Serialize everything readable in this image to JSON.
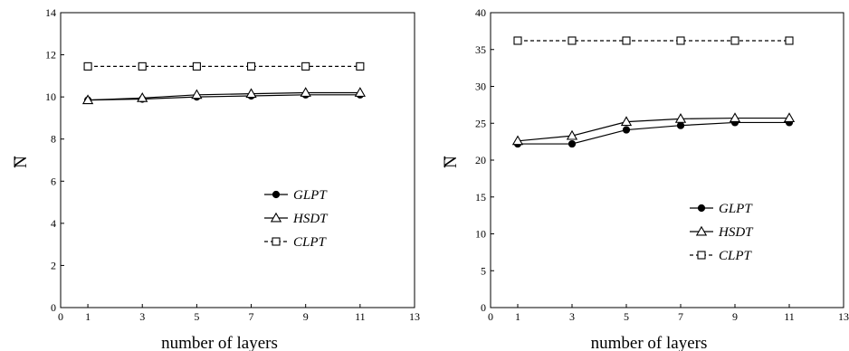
{
  "chart_data": [
    {
      "type": "line",
      "xlabel": "number of layers",
      "ylabel": "N",
      "ylabel_overbar": true,
      "xlim": [
        0,
        13
      ],
      "ylim": [
        0,
        14
      ],
      "xticks": [
        0,
        1,
        3,
        5,
        7,
        9,
        11,
        13
      ],
      "yticks": [
        0,
        2,
        4,
        6,
        8,
        10,
        12,
        14
      ],
      "x": [
        1,
        3,
        5,
        7,
        9,
        11
      ],
      "grid": false,
      "legend_position": "bottom-right",
      "series": [
        {
          "name": "GLPT",
          "marker": "filled-circle",
          "line": "solid",
          "values": [
            9.85,
            9.9,
            10.0,
            10.05,
            10.1,
            10.1
          ]
        },
        {
          "name": "HSDT",
          "marker": "open-triangle",
          "line": "solid",
          "values": [
            9.85,
            9.95,
            10.1,
            10.15,
            10.2,
            10.2
          ]
        },
        {
          "name": "CLPT",
          "marker": "open-square",
          "line": "dashed",
          "values": [
            11.45,
            11.45,
            11.45,
            11.45,
            11.45,
            11.45
          ]
        }
      ]
    },
    {
      "type": "line",
      "xlabel": "number of layers",
      "ylabel": "N",
      "ylabel_overbar": true,
      "xlim": [
        0,
        13
      ],
      "ylim": [
        0,
        40
      ],
      "xticks": [
        0,
        1,
        3,
        5,
        7,
        9,
        11,
        13
      ],
      "yticks": [
        0,
        5,
        10,
        15,
        20,
        25,
        30,
        35,
        40
      ],
      "x": [
        1,
        3,
        5,
        7,
        9,
        11
      ],
      "grid": false,
      "legend_position": "bottom-right",
      "series": [
        {
          "name": "GLPT",
          "marker": "filled-circle",
          "line": "solid",
          "values": [
            22.2,
            22.2,
            24.1,
            24.7,
            25.1,
            25.1
          ]
        },
        {
          "name": "HSDT",
          "marker": "open-triangle",
          "line": "solid",
          "values": [
            22.6,
            23.3,
            25.2,
            25.6,
            25.7,
            25.7
          ]
        },
        {
          "name": "CLPT",
          "marker": "open-square",
          "line": "dashed",
          "values": [
            36.2,
            36.2,
            36.2,
            36.2,
            36.2,
            36.2
          ]
        }
      ]
    }
  ]
}
